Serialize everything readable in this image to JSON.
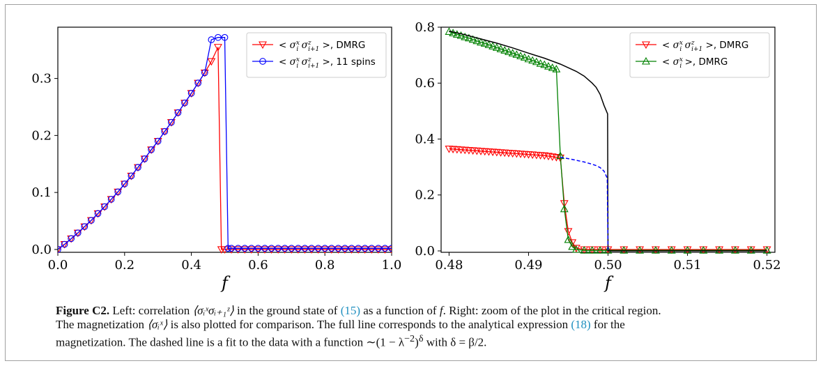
{
  "chart_data": [
    {
      "type": "line",
      "xlabel": "f",
      "ylabel": "",
      "xlim": [
        0.0,
        1.0
      ],
      "ylim": [
        -0.005,
        0.39
      ],
      "xticks": [
        "0.0",
        "0.2",
        "0.4",
        "0.6",
        "0.8",
        "1.0"
      ],
      "yticks": [
        "0.0",
        "0.1",
        "0.2",
        "0.3"
      ],
      "legend_position": "top-right",
      "series": [
        {
          "name": "< σ_i^x σ_{i+1}^z >, DMRG",
          "color": "#ff0000",
          "marker": "triangle-down",
          "x": [
            0.0,
            0.02,
            0.04,
            0.06,
            0.08,
            0.1,
            0.12,
            0.14,
            0.16,
            0.18,
            0.2,
            0.22,
            0.24,
            0.26,
            0.28,
            0.3,
            0.32,
            0.34,
            0.36,
            0.38,
            0.4,
            0.42,
            0.44,
            0.46,
            0.48,
            0.49,
            0.5,
            0.52,
            0.54,
            0.56,
            0.58,
            0.6,
            0.62,
            0.64,
            0.66,
            0.68,
            0.7,
            0.72,
            0.74,
            0.76,
            0.78,
            0.8,
            0.82,
            0.84,
            0.86,
            0.88,
            0.9,
            0.92,
            0.94,
            0.96,
            0.98,
            1.0
          ],
          "y": [
            0.0,
            0.009,
            0.019,
            0.029,
            0.04,
            0.051,
            0.063,
            0.075,
            0.088,
            0.101,
            0.115,
            0.129,
            0.144,
            0.159,
            0.175,
            0.19,
            0.207,
            0.223,
            0.24,
            0.257,
            0.274,
            0.292,
            0.31,
            0.33,
            0.355,
            0.0,
            0.0,
            0.0,
            0.0,
            0.0,
            0.0,
            0.0,
            0.0,
            0.0,
            0.0,
            0.0,
            0.0,
            0.0,
            0.0,
            0.0,
            0.0,
            0.0,
            0.0,
            0.0,
            0.0,
            0.0,
            0.0,
            0.0,
            0.0,
            0.0,
            0.0,
            0.0
          ]
        },
        {
          "name": "< σ_i^x σ_{i+1}^z >, 11 spins",
          "color": "#0000ff",
          "marker": "circle",
          "x": [
            0.0,
            0.02,
            0.04,
            0.06,
            0.08,
            0.1,
            0.12,
            0.14,
            0.16,
            0.18,
            0.2,
            0.22,
            0.24,
            0.26,
            0.28,
            0.3,
            0.32,
            0.34,
            0.36,
            0.38,
            0.4,
            0.42,
            0.44,
            0.46,
            0.48,
            0.5,
            0.51,
            0.52,
            0.54,
            0.56,
            0.58,
            0.6,
            0.62,
            0.64,
            0.66,
            0.68,
            0.7,
            0.72,
            0.74,
            0.76,
            0.78,
            0.8,
            0.82,
            0.84,
            0.86,
            0.88,
            0.9,
            0.92,
            0.94,
            0.96,
            0.98,
            1.0
          ],
          "y": [
            0.0,
            0.009,
            0.019,
            0.029,
            0.04,
            0.051,
            0.063,
            0.075,
            0.088,
            0.101,
            0.115,
            0.129,
            0.144,
            0.159,
            0.175,
            0.19,
            0.207,
            0.223,
            0.24,
            0.257,
            0.274,
            0.292,
            0.31,
            0.368,
            0.372,
            0.372,
            0.002,
            0.002,
            0.002,
            0.002,
            0.002,
            0.002,
            0.002,
            0.002,
            0.002,
            0.002,
            0.002,
            0.002,
            0.002,
            0.002,
            0.002,
            0.002,
            0.002,
            0.002,
            0.002,
            0.002,
            0.002,
            0.002,
            0.002,
            0.002,
            0.002,
            0.002
          ]
        }
      ]
    },
    {
      "type": "line",
      "xlabel": "f",
      "ylabel": "",
      "xlim": [
        0.479,
        0.521
      ],
      "ylim": [
        -0.005,
        0.8
      ],
      "xticks": [
        "0.48",
        "0.49",
        "0.50",
        "0.51",
        "0.52"
      ],
      "yticks": [
        "0.0",
        "0.2",
        "0.4",
        "0.6",
        "0.8"
      ],
      "legend_position": "top-right",
      "series": [
        {
          "name": "< σ_i^x σ_{i+1}^z >, DMRG",
          "color": "#ff0000",
          "marker": "triangle-down",
          "x": [
            0.48,
            0.4805,
            0.481,
            0.4815,
            0.482,
            0.4825,
            0.483,
            0.4835,
            0.484,
            0.4845,
            0.485,
            0.4855,
            0.486,
            0.4865,
            0.487,
            0.4875,
            0.488,
            0.4885,
            0.489,
            0.4895,
            0.49,
            0.4905,
            0.491,
            0.4915,
            0.492,
            0.4925,
            0.493,
            0.4935,
            0.494,
            0.4945,
            0.495,
            0.4955,
            0.496,
            0.497,
            0.498,
            0.499,
            0.5,
            0.502,
            0.504,
            0.506,
            0.508,
            0.51,
            0.512,
            0.514,
            0.516,
            0.518,
            0.52
          ],
          "y": [
            0.365,
            0.364,
            0.363,
            0.362,
            0.361,
            0.36,
            0.359,
            0.358,
            0.357,
            0.356,
            0.355,
            0.354,
            0.353,
            0.352,
            0.351,
            0.35,
            0.349,
            0.348,
            0.347,
            0.346,
            0.345,
            0.344,
            0.343,
            0.342,
            0.341,
            0.339,
            0.337,
            0.335,
            0.333,
            0.17,
            0.07,
            0.03,
            0.01,
            0.005,
            0.005,
            0.005,
            0.005,
            0.005,
            0.005,
            0.005,
            0.005,
            0.005,
            0.005,
            0.005,
            0.005,
            0.005,
            0.005
          ]
        },
        {
          "name": "< σ_i^x >, DMRG",
          "color": "#008000",
          "marker": "triangle-up",
          "x": [
            0.48,
            0.4805,
            0.481,
            0.4815,
            0.482,
            0.4825,
            0.483,
            0.4835,
            0.484,
            0.4845,
            0.485,
            0.4855,
            0.486,
            0.4865,
            0.487,
            0.4875,
            0.488,
            0.4885,
            0.489,
            0.4895,
            0.49,
            0.4905,
            0.491,
            0.4915,
            0.492,
            0.4925,
            0.493,
            0.4935,
            0.494,
            0.4945,
            0.495,
            0.4955,
            0.496,
            0.497,
            0.498,
            0.499,
            0.5,
            0.502,
            0.504,
            0.506,
            0.508,
            0.51,
            0.512,
            0.514,
            0.516,
            0.518,
            0.52
          ],
          "y": [
            0.784,
            0.779,
            0.774,
            0.77,
            0.765,
            0.761,
            0.756,
            0.751,
            0.746,
            0.742,
            0.737,
            0.732,
            0.727,
            0.722,
            0.717,
            0.712,
            0.707,
            0.702,
            0.697,
            0.692,
            0.686,
            0.681,
            0.676,
            0.67,
            0.666,
            0.66,
            0.655,
            0.65,
            0.34,
            0.15,
            0.04,
            0.015,
            0.005,
            0.002,
            0.002,
            0.002,
            0.002,
            0.002,
            0.002,
            0.002,
            0.002,
            0.002,
            0.002,
            0.002,
            0.002,
            0.002,
            0.002
          ]
        },
        {
          "name": "",
          "color": "#000000",
          "style": "solid",
          "x": [
            0.48,
            0.482,
            0.484,
            0.486,
            0.488,
            0.49,
            0.492,
            0.494,
            0.495,
            0.496,
            0.497,
            0.498,
            0.4985,
            0.499,
            0.4995,
            0.49995,
            0.5,
            0.51,
            0.52
          ],
          "y": [
            0.786,
            0.773,
            0.758,
            0.743,
            0.726,
            0.707,
            0.689,
            0.668,
            0.655,
            0.642,
            0.625,
            0.6,
            0.585,
            0.56,
            0.52,
            0.49,
            0.0,
            0.0,
            0.0
          ]
        },
        {
          "name": "",
          "color": "#0000ff",
          "style": "dashed",
          "x": [
            0.494,
            0.495,
            0.496,
            0.497,
            0.498,
            0.4985,
            0.499,
            0.4995,
            0.4999,
            0.5
          ],
          "y": [
            0.335,
            0.33,
            0.324,
            0.318,
            0.31,
            0.305,
            0.298,
            0.285,
            0.26,
            0.0
          ]
        }
      ]
    }
  ],
  "caption": {
    "label": "Figure C2.",
    "line1_a": " Left: correlation ",
    "line1_math": "⟨σᵢˣσᵢ₊₁ᶻ⟩",
    "line1_b": " in the ground state of ",
    "ref15": "(15)",
    "line1_c": " as a function of ",
    "line1_f": "f",
    "line1_d": ". Right: zoom of the plot in the critical region.",
    "line2_a": "The magnetization ",
    "line2_math": "⟨σᵢˣ⟩",
    "line2_b": " is also plotted for comparison. The full line corresponds to the analytical expression ",
    "ref18": "(18)",
    "line2_c": " for the",
    "line3_a": "magnetization. The dashed line is a fit to the data with a function ∼(1 − λ",
    "line3_sup": "−2",
    "line3_b": ")",
    "line3_delta": "δ",
    "line3_c": " with δ = β/2."
  }
}
